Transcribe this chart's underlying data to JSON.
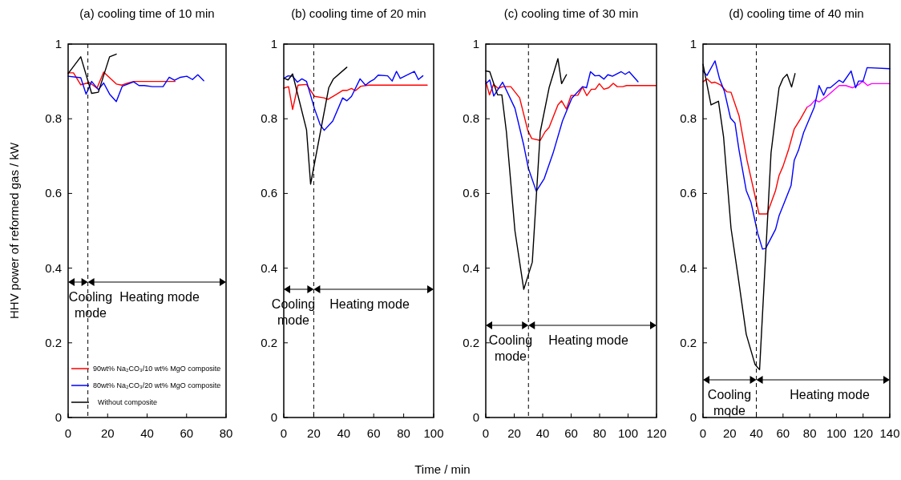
{
  "chart_data": [
    {
      "type": "line",
      "title": "(a) cooling time of 10 min",
      "ylabel": "HHV power of reformed gas / kW",
      "xlim": [
        0,
        80
      ],
      "xticks": [
        0,
        20,
        40,
        60,
        80
      ],
      "ylim": [
        0,
        1
      ],
      "yticks": [
        0,
        0.2,
        0.4,
        0.6,
        0.8,
        1
      ],
      "legend": "bottom left",
      "grid": false,
      "ref_lines": [
        {
          "axis": "x",
          "value": 10,
          "line_style": "dashed",
          "color": "#000000"
        }
      ],
      "annotations": [
        "Cooling mode",
        "Heating mode"
      ],
      "series": [
        {
          "name": "90wt% Na₂CO₃/10 wt% MgO composite",
          "color": "#ff0000",
          "x": [
            0,
            2.7,
            6.4,
            10.8,
            14.6,
            18,
            24.4,
            27.1,
            30.5,
            33.2,
            54.2
          ],
          "values": [
            0.923,
            0.923,
            0.891,
            0.897,
            0.882,
            0.925,
            0.893,
            0.89,
            0.896,
            0.9,
            0.9
          ]
        },
        {
          "name": "80wt% Na₂CO₃/20 wt% MgO composite",
          "color": "#0000ff",
          "x": [
            0,
            6.4,
            9.1,
            11.9,
            15.3,
            18,
            21,
            24.4,
            27.4,
            33.2,
            35.9,
            38.6,
            42.7,
            48.1,
            51.2,
            53.9,
            56.9,
            60.1,
            63,
            65.7,
            68.7
          ],
          "values": [
            0.914,
            0.91,
            0.866,
            0.9,
            0.878,
            0.896,
            0.866,
            0.846,
            0.887,
            0.899,
            0.889,
            0.889,
            0.886,
            0.886,
            0.911,
            0.903,
            0.911,
            0.914,
            0.905,
            0.918,
            0.902
          ]
        },
        {
          "name": "Without composite",
          "color": "#000000",
          "x": [
            0,
            6.4,
            11.9,
            15.3,
            21,
            24.4
          ],
          "values": [
            0.921,
            0.966,
            0.868,
            0.871,
            0.966,
            0.973
          ]
        }
      ]
    },
    {
      "type": "line",
      "title": "(b) cooling time of 20 min",
      "xlabel": "Time / min",
      "xlim": [
        0,
        100
      ],
      "xticks": [
        0,
        20,
        40,
        60,
        80,
        100
      ],
      "ylim": [
        0,
        1
      ],
      "yticks": [
        0,
        0.2,
        0.4,
        0.6,
        0.8,
        1
      ],
      "grid": false,
      "ref_lines": [
        {
          "axis": "x",
          "value": 20,
          "line_style": "dashed",
          "color": "#000000"
        }
      ],
      "annotations": [
        "Cooling mode",
        "Heating mode"
      ],
      "series": [
        {
          "color": "#ff0000",
          "x": [
            0,
            3.2,
            5.9,
            9.5,
            15.2,
            20.5,
            26.8,
            29.6,
            33.7,
            39.3,
            42.1,
            45.2,
            47.8,
            51.4,
            56.8,
            95.7
          ],
          "values": [
            0.882,
            0.886,
            0.825,
            0.89,
            0.892,
            0.86,
            0.856,
            0.852,
            0.862,
            0.876,
            0.876,
            0.881,
            0.875,
            0.887,
            0.89,
            0.89
          ]
        },
        {
          "color": "#0000ff",
          "x": [
            0,
            2.9,
            5.9,
            9.1,
            12.1,
            15.2,
            20.5,
            24.3,
            27,
            32.7,
            39.3,
            42.1,
            45.2,
            50.9,
            54.5,
            57.7,
            60.4,
            63,
            69.3,
            72.3,
            75.2,
            77.7,
            87.1,
            89.8,
            92.8
          ],
          "values": [
            0.908,
            0.915,
            0.914,
            0.898,
            0.907,
            0.9,
            0.827,
            0.784,
            0.769,
            0.794,
            0.856,
            0.848,
            0.86,
            0.907,
            0.89,
            0.9,
            0.906,
            0.917,
            0.915,
            0.901,
            0.927,
            0.908,
            0.927,
            0.905,
            0.915
          ]
        },
        {
          "color": "#000000",
          "x": [
            0.5,
            2.9,
            5.9,
            15.2,
            17.9,
            30,
            33,
            42.1
          ],
          "values": [
            0.908,
            0.904,
            0.92,
            0.77,
            0.625,
            0.883,
            0.906,
            0.938
          ]
        }
      ]
    },
    {
      "type": "line",
      "title": "(c) cooling time of 30 min",
      "xlim": [
        0,
        120
      ],
      "xticks": [
        0,
        20,
        40,
        60,
        80,
        100,
        120
      ],
      "ylim": [
        0,
        1
      ],
      "yticks": [
        0,
        0.2,
        0.4,
        0.6,
        0.8,
        1
      ],
      "grid": false,
      "ref_lines": [
        {
          "axis": "x",
          "value": 30,
          "line_style": "dashed",
          "color": "#000000"
        }
      ],
      "annotations": [
        "Cooling mode",
        "Heating mode"
      ],
      "series": [
        {
          "color": "#ff0000",
          "x": [
            0,
            2.6,
            5.5,
            8.8,
            11.8,
            17.6,
            23.8,
            29.5,
            32.3,
            38.3,
            41.7,
            44.5,
            50.7,
            53.3,
            56.7,
            59.9,
            64.7,
            68,
            71,
            74.2,
            77,
            79.8,
            83,
            86.4,
            89.6,
            92.4,
            96.2,
            99,
            119.6
          ],
          "values": [
            0.901,
            0.864,
            0.892,
            0.881,
            0.886,
            0.886,
            0.856,
            0.769,
            0.747,
            0.742,
            0.765,
            0.777,
            0.837,
            0.848,
            0.826,
            0.862,
            0.863,
            0.885,
            0.862,
            0.879,
            0.879,
            0.894,
            0.879,
            0.883,
            0.895,
            0.886,
            0.886,
            0.889,
            0.889
          ]
        },
        {
          "color": "#0000ff",
          "x": [
            0,
            2.8,
            5.6,
            11.8,
            20.5,
            26.7,
            29.9,
            35.5,
            41.1,
            47.3,
            53.9,
            60.5,
            68,
            70.8,
            73.6,
            76.8,
            79.8,
            83,
            85.8,
            89,
            95.2,
            98,
            100.8,
            107
          ],
          "values": [
            0.894,
            0.904,
            0.861,
            0.898,
            0.828,
            0.729,
            0.668,
            0.606,
            0.64,
            0.708,
            0.794,
            0.855,
            0.886,
            0.883,
            0.926,
            0.915,
            0.916,
            0.906,
            0.918,
            0.914,
            0.926,
            0.919,
            0.926,
            0.899
          ]
        },
        {
          "color": "#000000",
          "x": [
            0,
            2.8,
            8.3,
            11.3,
            14.5,
            20.5,
            26.7,
            32.7,
            38.3,
            44.5,
            50.7,
            53.3,
            56.7
          ],
          "values": [
            0.928,
            0.926,
            0.864,
            0.864,
            0.765,
            0.5,
            0.343,
            0.416,
            0.765,
            0.883,
            0.961,
            0.894,
            0.918
          ]
        }
      ]
    },
    {
      "type": "line",
      "title": "(d) cooling time of 40 min",
      "xlim": [
        0,
        140
      ],
      "xticks": [
        0,
        20,
        40,
        60,
        80,
        100,
        120,
        140
      ],
      "ylim": [
        0,
        1
      ],
      "yticks": [
        0,
        0.2,
        0.4,
        0.6,
        0.8,
        1
      ],
      "grid": false,
      "ref_lines": [
        {
          "axis": "x",
          "value": 40,
          "line_style": "dashed",
          "color": "#000000"
        }
      ],
      "annotations": [
        "Cooling mode",
        "Heating mode"
      ],
      "series": [
        {
          "color": "#ff0000",
          "x": [
            0,
            3,
            6.4,
            9,
            13,
            18,
            21,
            27,
            33,
            42,
            48,
            54.4,
            57,
            60,
            64,
            68.4,
            73,
            78
          ],
          "values": [
            0.899,
            0.907,
            0.896,
            0.898,
            0.891,
            0.872,
            0.871,
            0.808,
            0.689,
            0.545,
            0.545,
            0.608,
            0.648,
            0.673,
            0.716,
            0.773,
            0.799,
            0.831
          ]
        },
        {
          "color": "#ff00ff",
          "x": [
            78,
            80.4,
            84,
            87,
            92,
            102,
            107,
            112,
            117,
            119.6,
            123.4,
            126.4,
            140
          ],
          "values": [
            0.831,
            0.836,
            0.85,
            0.845,
            0.858,
            0.889,
            0.889,
            0.883,
            0.892,
            0.901,
            0.889,
            0.894,
            0.894
          ]
        },
        {
          "color": "#0000ff",
          "x": [
            0,
            3,
            9,
            12.4,
            16,
            20.6,
            24,
            27,
            32.4,
            36,
            41,
            44.6,
            47,
            54.4,
            57,
            66,
            68.4,
            71.6,
            75.4,
            83.4,
            87,
            90.4,
            93,
            95.4,
            102,
            105,
            111,
            114.4,
            116.6,
            120,
            123,
            140
          ],
          "values": [
            0.928,
            0.916,
            0.955,
            0.907,
            0.874,
            0.802,
            0.788,
            0.716,
            0.608,
            0.576,
            0.493,
            0.451,
            0.453,
            0.504,
            0.54,
            0.621,
            0.689,
            0.716,
            0.763,
            0.831,
            0.889,
            0.863,
            0.883,
            0.883,
            0.903,
            0.897,
            0.928,
            0.883,
            0.901,
            0.901,
            0.937,
            0.934
          ]
        },
        {
          "color": "#000000",
          "x": [
            0,
            6,
            11.6,
            15.4,
            21,
            26,
            32.4,
            39,
            42.4,
            51,
            57,
            60,
            63,
            66.4,
            69
          ],
          "values": [
            0.946,
            0.837,
            0.847,
            0.752,
            0.507,
            0.385,
            0.223,
            0.142,
            0.128,
            0.709,
            0.883,
            0.908,
            0.919,
            0.885,
            0.921
          ]
        }
      ]
    }
  ]
}
